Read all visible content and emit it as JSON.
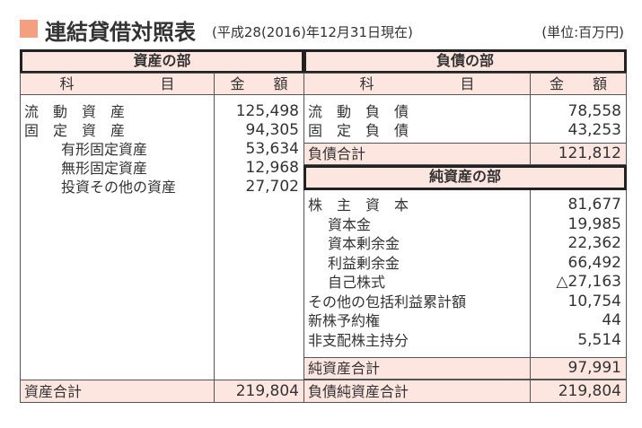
{
  "title": "連結貸借対照表",
  "subtitle": "(平成28(2016)年12月31日現在)",
  "unit": "(単位:百万円)",
  "colors": {
    "accent": "#f4a080",
    "header_bg": "#fde6e0"
  },
  "assets": {
    "section": "資産の部",
    "col_item": "科　　　　　　目",
    "col_amount": "金　　額",
    "rows": [
      {
        "label": "流　動　資　産",
        "value": "125,498",
        "indent": false
      },
      {
        "label": "固　定　資　産",
        "value": "94,305",
        "indent": false
      },
      {
        "label": "有形固定資産",
        "value": "53,634",
        "indent": true
      },
      {
        "label": "無形固定資産",
        "value": "12,968",
        "indent": true
      },
      {
        "label": "投資その他の資産",
        "value": "27,702",
        "indent": true
      }
    ],
    "total": {
      "label": "資産合計",
      "value": "219,804"
    }
  },
  "liabilities": {
    "section": "負債の部",
    "col_item": "科　　　　　　目",
    "col_amount": "金　　額",
    "rows": [
      {
        "label": "流　動　負　債",
        "value": "78,558"
      },
      {
        "label": "固　定　負　債",
        "value": "43,253"
      }
    ],
    "total": {
      "label": "負債合計",
      "value": "121,812"
    }
  },
  "net_assets": {
    "section": "純資産の部",
    "rows": [
      {
        "label": "株　主　資　本",
        "value": "81,677"
      },
      {
        "label": "資本金",
        "value": "19,985"
      },
      {
        "label": "資本剰余金",
        "value": "22,362"
      },
      {
        "label": "利益剰余金",
        "value": "66,492"
      },
      {
        "label": "自己株式",
        "value": "△27,163"
      },
      {
        "label": "その他の包括利益累計額",
        "value": "10,754"
      },
      {
        "label": "新株予約権",
        "value": "44"
      },
      {
        "label": "非支配株主持分",
        "value": "5,514"
      }
    ],
    "total": {
      "label": "純資産合計",
      "value": "97,991"
    },
    "grand_total": {
      "label": "負債純資産合計",
      "value": "219,804"
    }
  }
}
